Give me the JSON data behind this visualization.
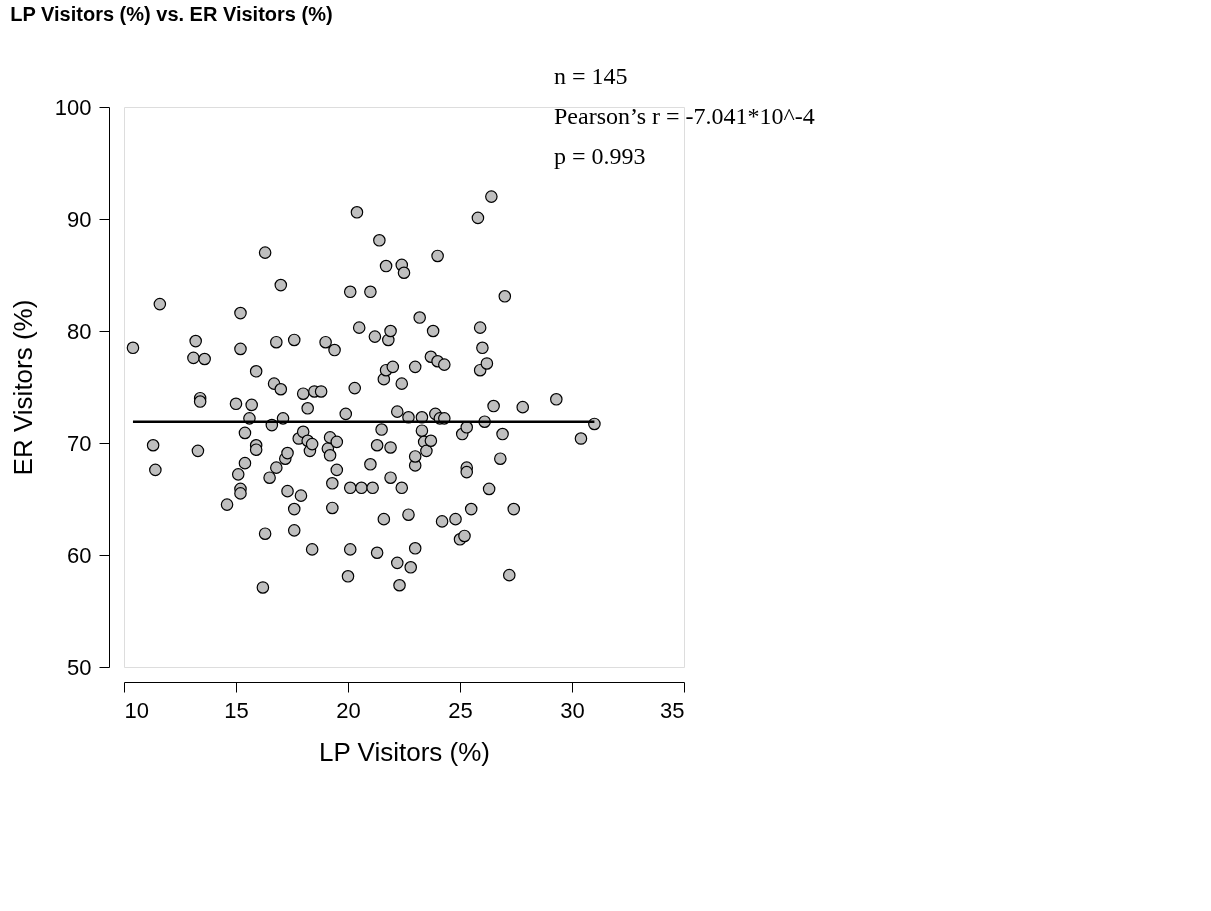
{
  "chart_data": {
    "type": "scatter",
    "title": "LP Visitors (%) vs. ER Visitors (%)",
    "xlabel": "LP Visitors (%)",
    "ylabel": "ER Visitors (%)",
    "xlim": [
      10,
      35
    ],
    "xticks": [
      10,
      15,
      20,
      25,
      30,
      35
    ],
    "ylim": [
      50,
      100
    ],
    "yticks": [
      50,
      60,
      70,
      80,
      90,
      100
    ],
    "grid": false,
    "annotations": [
      "n = 145",
      "Pearson’s r = -7.041*10^-4",
      "p = 0.993"
    ],
    "series": [
      {
        "marker": "circle",
        "color": "#bfbfbf",
        "x": [
          10.4,
          11.3,
          11.4,
          11.6,
          13.1,
          13.2,
          13.3,
          13.4,
          13.4,
          13.6,
          14.6,
          15.0,
          15.1,
          15.2,
          15.2,
          15.2,
          15.2,
          15.4,
          15.4,
          15.6,
          15.7,
          15.9,
          15.9,
          15.9,
          16.3,
          16.3,
          16.5,
          16.6,
          16.7,
          16.8,
          16.8,
          17.0,
          17.0,
          17.1,
          17.2,
          17.3,
          17.3,
          17.6,
          17.6,
          17.6,
          17.8,
          17.9,
          18.0,
          18.0,
          18.2,
          18.2,
          18.3,
          18.4,
          18.4,
          18.5,
          18.8,
          19.0,
          19.1,
          19.2,
          19.2,
          19.3,
          19.3,
          19.4,
          19.5,
          19.5,
          19.9,
          16.2,
          20.1,
          20.1,
          20.1,
          20.0,
          20.3,
          20.4,
          20.5,
          20.6,
          21.0,
          21.0,
          21.1,
          21.2,
          21.3,
          21.3,
          21.4,
          21.5,
          21.6,
          21.6,
          21.7,
          21.7,
          21.8,
          21.9,
          21.9,
          21.9,
          22.0,
          22.2,
          22.2,
          22.3,
          22.4,
          22.4,
          22.4,
          22.5,
          22.7,
          22.7,
          22.8,
          23.0,
          23.0,
          23.0,
          23.0,
          23.2,
          23.3,
          23.3,
          23.4,
          23.5,
          23.7,
          23.7,
          23.8,
          23.9,
          24.0,
          24.0,
          24.1,
          24.2,
          24.3,
          24.3,
          24.8,
          25.0,
          25.1,
          25.2,
          25.3,
          25.3,
          25.3,
          25.5,
          25.8,
          25.9,
          25.9,
          26.0,
          26.1,
          26.2,
          26.3,
          26.4,
          26.5,
          26.8,
          26.9,
          27.0,
          27.2,
          27.4,
          27.8,
          29.3,
          30.4,
          31.0
        ],
        "values": [
          78.5,
          69.8,
          67.6,
          82.4,
          77.6,
          79.1,
          69.3,
          74.0,
          73.7,
          77.5,
          64.5,
          73.5,
          67.2,
          65.9,
          65.5,
          81.6,
          78.4,
          70.9,
          68.2,
          72.2,
          73.4,
          76.4,
          69.8,
          69.4,
          87.0,
          61.9,
          66.9,
          71.6,
          75.3,
          67.8,
          79.0,
          74.8,
          84.1,
          72.2,
          68.6,
          69.1,
          65.7,
          64.1,
          62.2,
          79.2,
          70.4,
          65.3,
          74.4,
          71.0,
          73.1,
          70.2,
          69.3,
          69.9,
          60.5,
          74.6,
          74.6,
          79.0,
          69.5,
          70.5,
          68.9,
          64.2,
          66.4,
          78.3,
          67.6,
          70.1,
          72.6,
          57.1,
          83.5,
          66.0,
          60.5,
          58.1,
          74.9,
          90.6,
          80.3,
          66.0,
          68.1,
          83.5,
          66.0,
          79.5,
          69.8,
          60.2,
          88.1,
          71.2,
          63.2,
          75.7,
          76.5,
          85.8,
          79.2,
          80.0,
          66.9,
          69.6,
          76.8,
          59.3,
          72.8,
          57.3,
          75.3,
          66.0,
          85.9,
          85.2,
          72.3,
          63.6,
          58.9,
          60.6,
          68.0,
          68.8,
          76.8,
          81.2,
          72.3,
          71.1,
          70.1,
          69.3,
          70.2,
          77.7,
          80.0,
          72.6,
          86.7,
          77.3,
          72.2,
          63.0,
          77.0,
          72.2,
          63.2,
          61.4,
          70.8,
          61.7,
          71.4,
          67.8,
          67.4,
          64.1,
          90.1,
          76.5,
          80.3,
          78.5,
          71.9,
          77.1,
          65.9,
          92.0,
          73.3,
          68.6,
          70.8,
          83.1,
          58.2,
          64.1,
          73.2,
          73.9,
          70.4,
          71.7
        ]
      },
      {
        "type": "line",
        "color": "#000000",
        "x": [
          10.4,
          31.0
        ],
        "values": [
          71.9,
          71.9
        ]
      }
    ]
  }
}
